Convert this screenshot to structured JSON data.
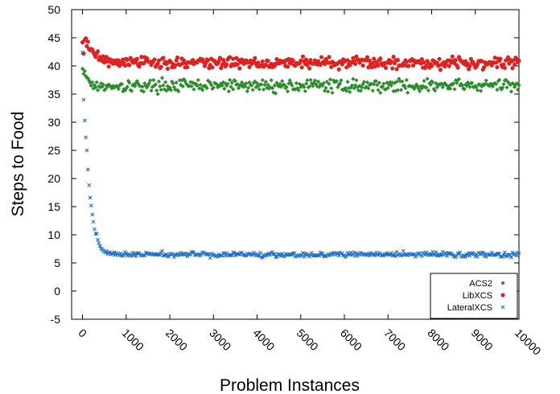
{
  "chart_data": {
    "type": "scatter",
    "xlabel": "Problem Instances",
    "ylabel": "Steps to Food",
    "xlim": [
      -250,
      10000
    ],
    "ylim": [
      -5,
      50
    ],
    "x_ticks": [
      0,
      1000,
      2000,
      3000,
      4000,
      5000,
      6000,
      7000,
      8000,
      9000,
      10000
    ],
    "x_tick_labels": [
      "0",
      "1000",
      "2000",
      "3000",
      "4000",
      "5000",
      "6000",
      "7000",
      "8000",
      "9000",
      "10000"
    ],
    "y_ticks": [
      -5,
      0,
      5,
      10,
      15,
      20,
      25,
      30,
      35,
      40,
      45,
      50
    ],
    "y_tick_labels": [
      "-5",
      "0",
      "5",
      "10",
      "15",
      "20",
      "25",
      "30",
      "35",
      "40",
      "45",
      "50"
    ],
    "grid": false,
    "legend_position": "bottom-right",
    "series": [
      {
        "name": "ACS2",
        "color": "#2e8b2e",
        "marker": "diamond",
        "description_of_trend": "starts near 39.5 at x=0, settles around 36.5 after ~300 instances, noisy between 35 and 38",
        "points": [
          [
            0,
            39.5
          ],
          [
            25,
            38.6
          ],
          [
            50,
            39.1
          ],
          [
            75,
            38.2
          ],
          [
            100,
            37.9
          ],
          [
            125,
            37.8
          ],
          [
            150,
            37.4
          ],
          [
            175,
            37.0
          ],
          [
            200,
            36.5
          ],
          [
            225,
            37.1
          ],
          [
            250,
            36.0
          ],
          [
            275,
            36.6
          ],
          [
            300,
            36.2
          ],
          [
            325,
            37.1
          ],
          [
            350,
            35.7
          ],
          [
            375,
            36.4
          ],
          [
            400,
            36.2
          ],
          [
            425,
            36.9
          ],
          [
            450,
            36.3
          ],
          [
            475,
            36.7
          ],
          [
            500,
            35.7
          ],
          [
            525,
            35.9
          ],
          [
            550,
            36.5
          ],
          [
            575,
            36.3
          ],
          [
            600,
            36.7
          ]
        ],
        "plateau_mean": 36.5,
        "plateau_spread": 1.1
      },
      {
        "name": "LibXCS",
        "color": "#dd2222",
        "marker": "circle",
        "description_of_trend": "starts near 44.5, settles around 40.5 after ~800 instances, noisy between 39 and 42",
        "points": [
          [
            0,
            44.2
          ],
          [
            25,
            42.2
          ],
          [
            50,
            44.6
          ],
          [
            75,
            44.9
          ],
          [
            100,
            43.5
          ],
          [
            125,
            44.3
          ],
          [
            150,
            43.0
          ],
          [
            175,
            42.8
          ],
          [
            200,
            43.0
          ],
          [
            225,
            42.9
          ],
          [
            250,
            42.4
          ],
          [
            275,
            42.0
          ],
          [
            300,
            41.6
          ],
          [
            325,
            42.2
          ],
          [
            350,
            42.6
          ],
          [
            375,
            41.1
          ],
          [
            400,
            41.6
          ],
          [
            425,
            41.4
          ],
          [
            450,
            40.9
          ],
          [
            475,
            41.7
          ],
          [
            500,
            40.6
          ],
          [
            525,
            41.2
          ],
          [
            550,
            41.6
          ],
          [
            575,
            40.8
          ],
          [
            600,
            39.9
          ],
          [
            625,
            41.2
          ],
          [
            650,
            40.7
          ],
          [
            675,
            41.0
          ],
          [
            700,
            40.4
          ],
          [
            725,
            40.9
          ],
          [
            750,
            40.5
          ],
          [
            775,
            41.0
          ],
          [
            800,
            40.3
          ]
        ],
        "plateau_mean": 40.6,
        "plateau_spread": 1.0
      },
      {
        "name": "LateralXCS",
        "color": "#1f6fbf",
        "marker": "x",
        "description_of_trend": "starts near 42.5, drops steeply to about 7 by ~800 instances, then flat around 6.5",
        "points": [
          [
            0,
            42.4
          ],
          [
            25,
            34.0
          ],
          [
            50,
            30.3
          ],
          [
            75,
            27.3
          ],
          [
            100,
            25.0
          ],
          [
            125,
            21.6
          ],
          [
            150,
            18.8
          ],
          [
            175,
            16.6
          ],
          [
            200,
            15.2
          ],
          [
            225,
            13.6
          ],
          [
            250,
            12.3
          ],
          [
            275,
            11.0
          ],
          [
            300,
            10.2
          ],
          [
            325,
            10.2
          ],
          [
            350,
            9.1
          ],
          [
            375,
            8.5
          ],
          [
            400,
            8.0
          ],
          [
            425,
            7.6
          ],
          [
            450,
            7.4
          ],
          [
            475,
            7.2
          ],
          [
            500,
            7.0
          ],
          [
            525,
            6.8
          ],
          [
            550,
            7.1
          ],
          [
            575,
            6.6
          ],
          [
            600,
            6.8
          ],
          [
            625,
            6.9
          ],
          [
            650,
            6.5
          ],
          [
            675,
            6.7
          ],
          [
            700,
            6.6
          ],
          [
            725,
            6.9
          ],
          [
            750,
            6.4
          ],
          [
            775,
            6.8
          ],
          [
            800,
            6.6
          ]
        ],
        "plateau_mean": 6.5,
        "plateau_spread": 0.45
      }
    ],
    "sample_step": 25
  }
}
